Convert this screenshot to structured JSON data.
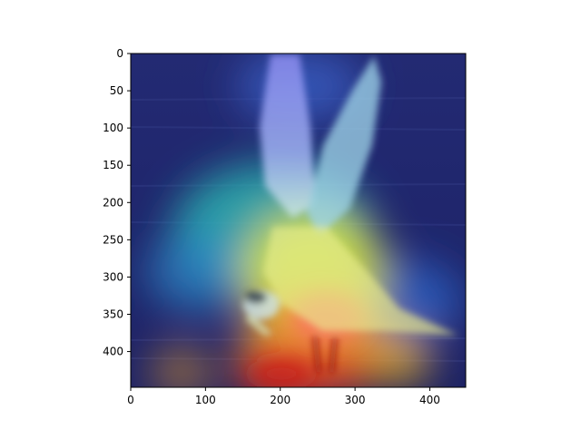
{
  "chart_data": {
    "type": "heatmap",
    "title": "",
    "xlabel": "",
    "ylabel": "",
    "x_range": [
      0,
      448
    ],
    "y_range": [
      448,
      0
    ],
    "x_ticks": [
      0,
      100,
      200,
      300,
      400
    ],
    "y_ticks": [
      0,
      50,
      100,
      150,
      200,
      250,
      300,
      350,
      400
    ],
    "x_tick_labels": [
      "0",
      "100",
      "200",
      "300",
      "400"
    ],
    "y_tick_labels": [
      "0",
      "50",
      "100",
      "150",
      "200",
      "250",
      "300",
      "350",
      "400"
    ],
    "grid": false,
    "colormap": "jet",
    "content": "overlay"
  }
}
